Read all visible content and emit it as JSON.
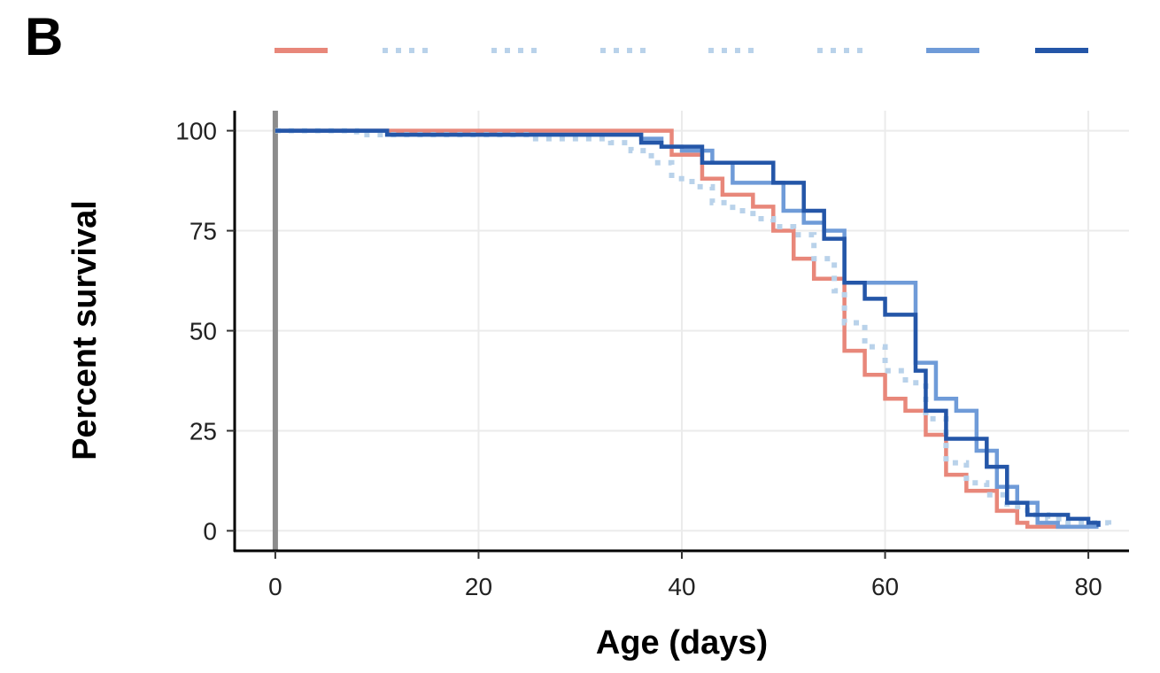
{
  "panel_label": "B",
  "chart_data": {
    "type": "line",
    "step": true,
    "title": "",
    "xlabel": "Age (days)",
    "ylabel": "Percent survival",
    "xlim": [
      -4,
      84
    ],
    "ylim": [
      -5,
      105
    ],
    "xticks": [
      0,
      20,
      40,
      60,
      80
    ],
    "yticks": [
      0,
      25,
      50,
      75,
      100
    ],
    "grid": true,
    "legend": "top",
    "reference_line": {
      "x": 0,
      "color": "#8c8c8c"
    },
    "series": [
      {
        "color": "#e8877a",
        "style": "solid",
        "width": 4.5,
        "x": [
          0,
          37,
          39,
          42,
          44,
          47,
          49,
          51,
          53,
          55,
          56,
          58,
          60,
          62,
          64,
          66,
          68,
          71,
          73,
          74,
          76,
          80
        ],
        "y": [
          100,
          100,
          94,
          88,
          84,
          81,
          75,
          68,
          63,
          63,
          45,
          39,
          33,
          30,
          24,
          14,
          10,
          5,
          2,
          1,
          1,
          1
        ]
      },
      {
        "color": "#b9d2ea",
        "style": "dotted",
        "width": 6,
        "x": [
          0,
          8,
          25,
          33,
          35,
          37,
          39,
          41,
          43,
          45,
          47,
          49,
          51,
          53,
          55,
          56,
          58,
          60,
          62,
          64,
          66,
          68,
          70,
          72,
          74,
          76,
          78,
          82
        ],
        "y": [
          100,
          99,
          98,
          97,
          95,
          92,
          88,
          86,
          82,
          80,
          78,
          76,
          74,
          68,
          60,
          52,
          46,
          40,
          37,
          28,
          17,
          12,
          9,
          6,
          4,
          3,
          2,
          0
        ]
      },
      {
        "color": "#6f9bd8",
        "style": "solid",
        "width": 4.5,
        "x": [
          0,
          11,
          34,
          36,
          38,
          40,
          43,
          45,
          47,
          50,
          52,
          54,
          56,
          60,
          63,
          65,
          67,
          69,
          71,
          73,
          75,
          77,
          79,
          81
        ],
        "y": [
          100,
          99,
          99,
          98,
          96,
          95,
          92,
          87,
          87,
          80,
          77,
          75,
          62,
          62,
          42,
          33,
          30,
          20,
          11,
          7,
          2,
          1,
          1,
          1
        ]
      },
      {
        "color": "#2456a8",
        "style": "solid",
        "width": 4.5,
        "x": [
          0,
          11,
          34,
          36,
          38,
          42,
          44,
          49,
          50,
          52,
          54,
          56,
          58,
          60,
          63,
          64,
          66,
          68,
          70,
          72,
          74,
          76,
          78,
          80,
          81
        ],
        "y": [
          100,
          99,
          99,
          97,
          96,
          92,
          92,
          87,
          87,
          80,
          73,
          62,
          58,
          54,
          40,
          30,
          23,
          23,
          16,
          7,
          4,
          4,
          3,
          2,
          1
        ]
      }
    ]
  }
}
